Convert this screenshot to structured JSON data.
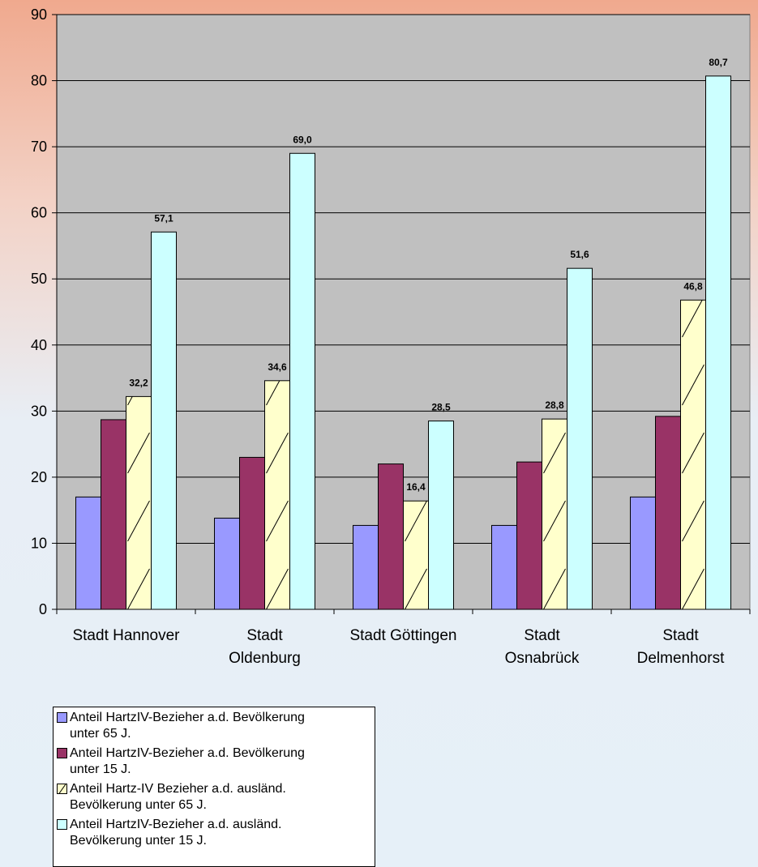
{
  "chart_data": {
    "type": "bar",
    "categories": [
      "Stadt Hannover",
      "Stadt Oldenburg",
      "Stadt Göttingen",
      "Stadt Osnabrück",
      "Stadt Delmenhorst"
    ],
    "category_lines": [
      [
        "Stadt Hannover"
      ],
      [
        "Stadt",
        "Oldenburg"
      ],
      [
        "Stadt Göttingen"
      ],
      [
        "Stadt",
        "Osnabrück"
      ],
      [
        "Stadt",
        "Delmenhorst"
      ]
    ],
    "series": [
      {
        "name": "Anteil HartzIV-Bezieher a.d. Bevölkerung unter 65 J.",
        "values": [
          17.0,
          13.8,
          12.7,
          12.7,
          17.0
        ],
        "color": "#9999ff",
        "hatched": false,
        "show_labels": false
      },
      {
        "name": "Anteil HartzIV-Bezieher a.d. Bevölkerung unter 15 J.",
        "values": [
          28.7,
          23.0,
          22.0,
          22.3,
          29.2
        ],
        "color": "#993366",
        "hatched": false,
        "show_labels": false
      },
      {
        "name": "Anteil Hartz-IV Bezieher a.d. ausländ. Bevölkerung unter 65 J.",
        "values": [
          32.2,
          34.6,
          16.4,
          28.8,
          46.8
        ],
        "color": "#ffffcc",
        "hatched": true,
        "show_labels": true
      },
      {
        "name": "Anteil HartzIV-Bezieher a.d. ausländ. Bevölkerung unter 15 J.",
        "values": [
          57.1,
          69.0,
          28.5,
          51.6,
          80.7
        ],
        "color": "#ccffff",
        "hatched": false,
        "show_labels": true
      }
    ],
    "data_labels": {
      "2": [
        "32,2",
        "34,6",
        "16,4",
        "28,8",
        "46,8"
      ],
      "3": [
        "57,1",
        "69,0",
        "28,5",
        "51,6",
        "80,7"
      ]
    },
    "legend_lines": [
      [
        "Anteil HartzIV-Bezieher a.d. Bevölkerung",
        "unter 65 J."
      ],
      [
        "Anteil HartzIV-Bezieher a.d. Bevölkerung",
        "unter 15 J."
      ],
      [
        "Anteil Hartz-IV Bezieher a.d. ausländ.",
        "Bevölkerung unter 65 J."
      ],
      [
        "Anteil HartzIV-Bezieher a.d. ausländ.",
        "Bevölkerung unter 15 J."
      ]
    ],
    "title": "",
    "xlabel": "",
    "ylabel": "",
    "ylim": [
      0,
      90
    ],
    "yticks": [
      0,
      10,
      20,
      30,
      40,
      50,
      60,
      70,
      80,
      90
    ],
    "grid": true,
    "legend_position": "bottom-left",
    "plot_background": "#c0c0c0"
  }
}
